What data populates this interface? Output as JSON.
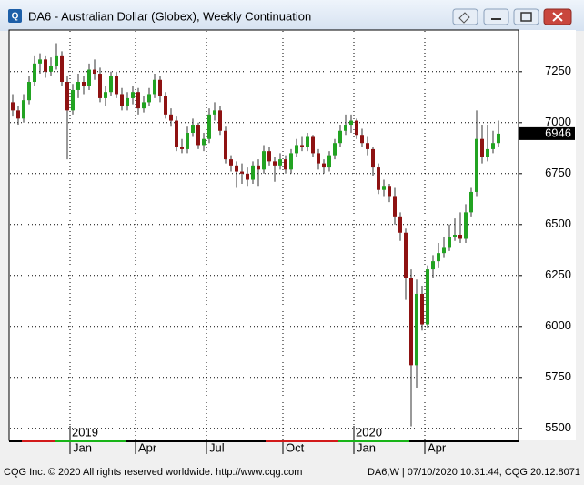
{
  "chart_data": {
    "type": "candlestick",
    "title": "DA6 - Australian Dollar (Globex), Weekly Continuation",
    "categories": [
      null,
      null,
      null,
      null,
      null,
      null,
      null,
      null,
      null,
      null,
      null,
      "Jan",
      null,
      null,
      null,
      null,
      null,
      null,
      null,
      null,
      null,
      null,
      null,
      "Apr",
      null,
      null,
      null,
      null,
      null,
      null,
      null,
      null,
      null,
      null,
      null,
      null,
      "Jul",
      null,
      null,
      null,
      null,
      null,
      null,
      null,
      null,
      null,
      null,
      null,
      null,
      null,
      "Oct",
      null,
      null,
      null,
      null,
      null,
      null,
      null,
      null,
      null,
      null,
      null,
      null,
      "Jan",
      null,
      null,
      null,
      null,
      null,
      null,
      null,
      null,
      null,
      null,
      null,
      null,
      "Apr",
      null,
      null,
      null,
      null,
      null,
      null,
      null,
      null,
      null,
      null,
      null,
      null,
      null
    ],
    "years": [
      null,
      null,
      null,
      null,
      null,
      null,
      null,
      null,
      null,
      null,
      null,
      "2019",
      null,
      null,
      null,
      null,
      null,
      null,
      null,
      null,
      null,
      null,
      null,
      null,
      null,
      null,
      null,
      null,
      null,
      null,
      null,
      null,
      null,
      null,
      null,
      null,
      null,
      null,
      null,
      null,
      null,
      null,
      null,
      null,
      null,
      null,
      null,
      null,
      null,
      null,
      null,
      null,
      null,
      null,
      null,
      null,
      null,
      null,
      null,
      null,
      null,
      null,
      null,
      "2020",
      null,
      null,
      null,
      null,
      null,
      null,
      null,
      null,
      null,
      null,
      null,
      null,
      null,
      null,
      null,
      null,
      null,
      null,
      null,
      null,
      null,
      null,
      null,
      null,
      null,
      null
    ],
    "open": [
      7100,
      7060,
      7020,
      7110,
      7200,
      7290,
      7310,
      7250,
      7280,
      7330,
      7200,
      7060,
      7160,
      7200,
      7180,
      7260,
      7240,
      7120,
      7150,
      7230,
      7140,
      7080,
      7120,
      7150,
      7070,
      7100,
      7140,
      7210,
      7130,
      7040,
      7010,
      6880,
      6870,
      6950,
      6990,
      6890,
      6920,
      7040,
      7060,
      6960,
      6820,
      6790,
      6760,
      6750,
      6720,
      6790,
      6770,
      6860,
      6810,
      6790,
      6820,
      6770,
      6850,
      6890,
      6880,
      6930,
      6850,
      6800,
      6780,
      6840,
      6900,
      6960,
      6990,
      7010,
      6940,
      6900,
      6870,
      6780,
      6670,
      6690,
      6640,
      6540,
      6460,
      6240,
      5810,
      6160,
      6010,
      6280,
      6320,
      6360,
      6390,
      6440,
      6450,
      6430,
      6560,
      6660,
      6920,
      6830,
      6870,
      6900
    ],
    "high": [
      7140,
      7080,
      7140,
      7230,
      7330,
      7340,
      7330,
      7320,
      7390,
      7350,
      7230,
      7190,
      7240,
      7230,
      7290,
      7310,
      7270,
      7180,
      7250,
      7250,
      7170,
      7150,
      7180,
      7170,
      7130,
      7170,
      7240,
      7230,
      7150,
      7070,
      7030,
      6920,
      6980,
      7020,
      7000,
      6950,
      7070,
      7100,
      7080,
      6980,
      6840,
      6810,
      6800,
      6780,
      6810,
      6820,
      6890,
      6880,
      6830,
      6850,
      6840,
      6870,
      6920,
      6930,
      6950,
      6940,
      6870,
      6820,
      6860,
      6920,
      6990,
      7040,
      7040,
      7020,
      6970,
      6930,
      6880,
      6800,
      6720,
      6700,
      6680,
      6560,
      6480,
      6280,
      6230,
      6200,
      6300,
      6350,
      6410,
      6440,
      6500,
      6530,
      6560,
      6600,
      6680,
      7060,
      6990,
      6990,
      6960,
      7010
    ],
    "low": [
      7030,
      6990,
      7000,
      7090,
      7180,
      7240,
      7220,
      7230,
      7260,
      7180,
      6820,
      7040,
      7120,
      7140,
      7160,
      7210,
      7100,
      7080,
      7130,
      7120,
      7060,
      7060,
      7090,
      7040,
      7050,
      7080,
      7120,
      7100,
      7020,
      6980,
      6860,
      6850,
      6850,
      6930,
      6870,
      6860,
      6900,
      7010,
      6940,
      6800,
      6760,
      6680,
      6700,
      6690,
      6700,
      6690,
      6750,
      6790,
      6710,
      6770,
      6750,
      6750,
      6830,
      6860,
      6860,
      6830,
      6770,
      6750,
      6760,
      6820,
      6880,
      6940,
      6950,
      6920,
      6880,
      6840,
      6740,
      6650,
      6640,
      6610,
      6500,
      6420,
      6130,
      5510,
      5700,
      5980,
      5990,
      6240,
      6290,
      6340,
      6370,
      6420,
      6410,
      6410,
      6540,
      6640,
      6800,
      6810,
      6850,
      6880
    ],
    "close": [
      7060,
      7020,
      7110,
      7200,
      7290,
      7310,
      7250,
      7280,
      7330,
      7200,
      7060,
      7160,
      7200,
      7180,
      7260,
      7240,
      7120,
      7150,
      7230,
      7140,
      7080,
      7120,
      7150,
      7070,
      7100,
      7140,
      7210,
      7130,
      7040,
      7010,
      6880,
      6870,
      6950,
      6990,
      6890,
      6920,
      7040,
      7060,
      6960,
      6820,
      6790,
      6760,
      6750,
      6720,
      6790,
      6770,
      6860,
      6810,
      6790,
      6820,
      6770,
      6850,
      6890,
      6880,
      6930,
      6850,
      6800,
      6780,
      6840,
      6900,
      6960,
      6990,
      7010,
      6940,
      6900,
      6870,
      6780,
      6670,
      6690,
      6640,
      6540,
      6460,
      6240,
      5810,
      6160,
      6010,
      6280,
      6320,
      6360,
      6390,
      6440,
      6450,
      6430,
      6560,
      6660,
      6920,
      6830,
      6870,
      6900,
      6946
    ],
    "up_color": "#22a322",
    "down_color": "#8e1212",
    "ylim": [
      5450,
      7450
    ],
    "yticks": [
      5500,
      5750,
      6000,
      6250,
      6500,
      6750,
      7000,
      7250
    ],
    "grid": true
  },
  "footer_left": "CQG Inc. © 2020 All rights reserved worldwide. http://www.cqg.com",
  "footer_right": "DA6,W | 07/10/2020 10:31:44, CQG 20.12.8071"
}
